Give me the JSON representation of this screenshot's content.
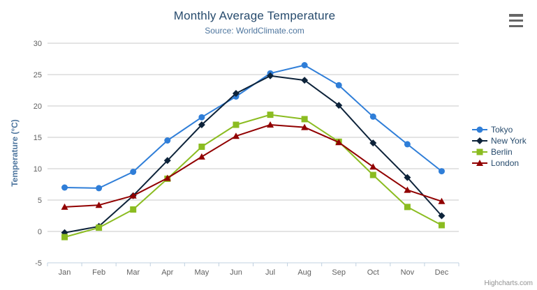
{
  "chart_data": {
    "type": "line",
    "title": "Monthly Average Temperature",
    "subtitle": "Source: WorldClimate.com",
    "xlabel": "",
    "ylabel": "Temperature (°C)",
    "ylim": [
      -5,
      30
    ],
    "ytick_step": 5,
    "grid": true,
    "legend_position": "right",
    "categories": [
      "Jan",
      "Feb",
      "Mar",
      "Apr",
      "May",
      "Jun",
      "Jul",
      "Aug",
      "Sep",
      "Oct",
      "Nov",
      "Dec"
    ],
    "series": [
      {
        "name": "Tokyo",
        "color": "#2f7ed8",
        "marker": "circle",
        "values": [
          7.0,
          6.9,
          9.5,
          14.5,
          18.2,
          21.5,
          25.2,
          26.5,
          23.3,
          18.3,
          13.9,
          9.6
        ]
      },
      {
        "name": "New York",
        "color": "#0d233a",
        "marker": "diamond",
        "values": [
          -0.2,
          0.8,
          5.7,
          11.3,
          17.0,
          22.0,
          24.8,
          24.1,
          20.1,
          14.1,
          8.6,
          2.5
        ]
      },
      {
        "name": "Berlin",
        "color": "#8bbc21",
        "marker": "square",
        "values": [
          -0.9,
          0.6,
          3.5,
          8.4,
          13.5,
          17.0,
          18.6,
          17.9,
          14.3,
          9.0,
          3.9,
          1.0
        ]
      },
      {
        "name": "London",
        "color": "#910000",
        "marker": "triangle",
        "values": [
          3.9,
          4.2,
          5.7,
          8.5,
          11.9,
          15.2,
          17.0,
          16.6,
          14.2,
          10.3,
          6.6,
          4.8
        ]
      }
    ]
  },
  "credits": "Highcharts.com",
  "icons": {
    "menu": "hamburger-icon"
  },
  "colors": {
    "grid": "#c9c9c9",
    "axis_line": "#c0d0e0",
    "axis_label": "#606060",
    "axis_title": "#4d759e",
    "title": "#274b6d",
    "subtitle": "#4d759e",
    "legend_text": "#274b6d",
    "menu_icon": "#666666",
    "credits_text": "#909090"
  }
}
